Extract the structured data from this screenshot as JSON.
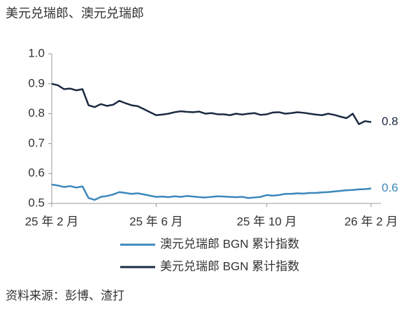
{
  "chart_data": {
    "type": "line",
    "title": "美元兑瑞郎、澳元兑瑞郎",
    "source": "资料来源：彭博、渣打",
    "categories": [
      "25 年 2 月",
      null,
      null,
      null,
      null,
      null,
      null,
      null,
      null,
      null,
      null,
      null,
      null,
      null,
      null,
      null,
      null,
      "25 年 6 月",
      null,
      null,
      null,
      null,
      null,
      null,
      null,
      null,
      null,
      null,
      null,
      null,
      null,
      null,
      null,
      null,
      null,
      "25 年 10 月",
      null,
      null,
      null,
      null,
      null,
      null,
      null,
      null,
      null,
      null,
      null,
      null,
      null,
      null,
      null,
      null,
      "26 年 2 月"
    ],
    "ylim": [
      0.5,
      1.0
    ],
    "yticks": [
      0.5,
      0.6,
      0.7,
      0.8,
      0.9,
      {
        "value": 1,
        "label": "1.0"
      }
    ],
    "grid": false,
    "legend": "bottom",
    "series": [
      {
        "name": "澳元兑瑞郎 BGN 累计指数",
        "color": "#3b87bb",
        "end_label": "0.6",
        "values": [
          0.563,
          0.56,
          0.555,
          0.558,
          0.553,
          0.557,
          0.518,
          0.512,
          0.522,
          0.525,
          0.53,
          0.538,
          0.535,
          0.532,
          0.534,
          0.53,
          0.526,
          0.522,
          0.523,
          0.521,
          0.524,
          0.522,
          0.525,
          0.523,
          0.521,
          0.52,
          0.522,
          0.524,
          0.523,
          0.522,
          0.521,
          0.522,
          0.518,
          0.52,
          0.522,
          0.528,
          0.526,
          0.528,
          0.532,
          0.532,
          0.534,
          0.533,
          0.535,
          0.535,
          0.537,
          0.538,
          0.54,
          0.542,
          0.544,
          0.545,
          0.547,
          0.548,
          0.55
        ]
      },
      {
        "name": "美元兑瑞郎 BGN 累计指数",
        "color": "#1b2a42",
        "end_label": "0.8",
        "values": [
          0.9,
          0.895,
          0.882,
          0.884,
          0.878,
          0.882,
          0.828,
          0.822,
          0.832,
          0.826,
          0.83,
          0.843,
          0.835,
          0.828,
          0.825,
          0.815,
          0.805,
          0.795,
          0.797,
          0.8,
          0.805,
          0.808,
          0.806,
          0.805,
          0.807,
          0.8,
          0.802,
          0.798,
          0.798,
          0.795,
          0.8,
          0.797,
          0.8,
          0.802,
          0.796,
          0.798,
          0.804,
          0.805,
          0.8,
          0.802,
          0.805,
          0.803,
          0.8,
          0.797,
          0.795,
          0.8,
          0.796,
          0.79,
          0.785,
          0.8,
          0.765,
          0.775,
          0.772
        ]
      }
    ]
  }
}
